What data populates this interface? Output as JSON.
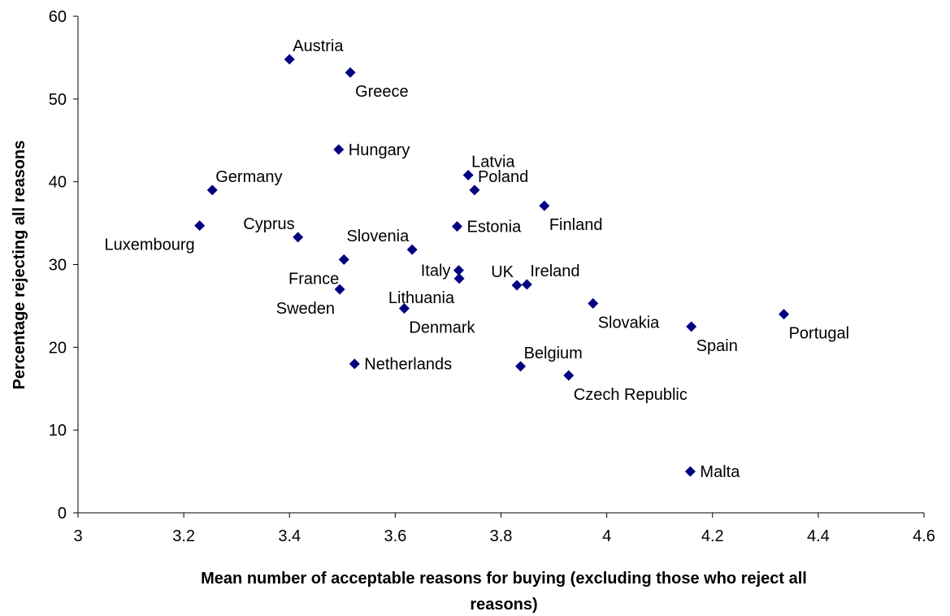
{
  "chart_data": {
    "type": "scatter",
    "xlabel_line1": "Mean number of acceptable reasons for buying (excluding those who reject all",
    "xlabel_line2": "reasons)",
    "ylabel": "Percentage rejecting all reasons",
    "xlim": [
      3,
      4.6
    ],
    "ylim": [
      0,
      60
    ],
    "xticks": [
      "3",
      "3.2",
      "3.4",
      "3.6",
      "3.8",
      "4",
      "4.2",
      "4.4",
      "4.6"
    ],
    "yticks": [
      "0",
      "10",
      "20",
      "30",
      "40",
      "50",
      "60"
    ],
    "grid": false,
    "marker_color": "#000080",
    "marker_shape": "diamond",
    "points": [
      {
        "label": "Austria",
        "x": 3.4,
        "y": 54.8,
        "pos": "above-right"
      },
      {
        "label": "Greece",
        "x": 3.515,
        "y": 53.2,
        "pos": "below-right"
      },
      {
        "label": "Hungary",
        "x": 3.493,
        "y": 43.9,
        "pos": "right"
      },
      {
        "label": "Latvia",
        "x": 3.738,
        "y": 40.8,
        "pos": "above-right"
      },
      {
        "label": "Poland",
        "x": 3.75,
        "y": 39.0,
        "pos": "above-right"
      },
      {
        "label": "Germany",
        "x": 3.254,
        "y": 39.0,
        "pos": "above-right"
      },
      {
        "label": "Finland",
        "x": 3.882,
        "y": 37.1,
        "pos": "below-right"
      },
      {
        "label": "Luxembourg",
        "x": 3.23,
        "y": 34.7,
        "pos": "below-left"
      },
      {
        "label": "Estonia",
        "x": 3.717,
        "y": 34.6,
        "pos": "right"
      },
      {
        "label": "Cyprus",
        "x": 3.416,
        "y": 33.3,
        "pos": "above-left"
      },
      {
        "label": "Slovenia",
        "x": 3.632,
        "y": 31.8,
        "pos": "above-left"
      },
      {
        "label": "France",
        "x": 3.503,
        "y": 30.6,
        "pos": "below-left"
      },
      {
        "label": "Italy",
        "x": 3.72,
        "y": 29.3,
        "pos": "left"
      },
      {
        "label": "Lithuania",
        "x": 3.721,
        "y": 28.3,
        "pos": "below-left"
      },
      {
        "label": "UK",
        "x": 3.83,
        "y": 27.5,
        "pos": "above-left"
      },
      {
        "label": "Ireland",
        "x": 3.849,
        "y": 27.6,
        "pos": "above-right"
      },
      {
        "label": "Sweden",
        "x": 3.495,
        "y": 27.0,
        "pos": "below-left"
      },
      {
        "label": "Slovakia",
        "x": 3.974,
        "y": 25.3,
        "pos": "below-right"
      },
      {
        "label": "Denmark",
        "x": 3.617,
        "y": 24.7,
        "pos": "below-right"
      },
      {
        "label": "Portugal",
        "x": 4.335,
        "y": 24.0,
        "pos": "below-right"
      },
      {
        "label": "Spain",
        "x": 4.16,
        "y": 22.5,
        "pos": "below-right"
      },
      {
        "label": "Netherlands",
        "x": 3.523,
        "y": 18.0,
        "pos": "right"
      },
      {
        "label": "Belgium",
        "x": 3.837,
        "y": 17.7,
        "pos": "above-right"
      },
      {
        "label": "Czech Republic",
        "x": 3.928,
        "y": 16.6,
        "pos": "below-right"
      },
      {
        "label": "Malta",
        "x": 4.158,
        "y": 5.0,
        "pos": "right"
      }
    ]
  }
}
